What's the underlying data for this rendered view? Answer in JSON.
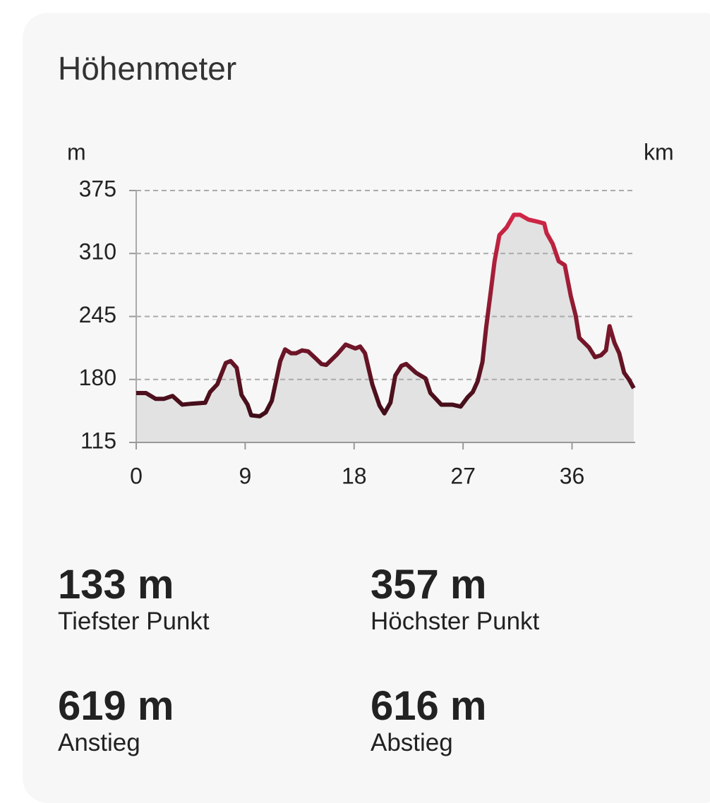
{
  "card": {
    "title": "Höhenmeter",
    "stats": [
      {
        "value": "133 m",
        "label": "Tiefster Punkt"
      },
      {
        "value": "357 m",
        "label": "Höchster Punkt"
      },
      {
        "value": "619 m",
        "label": "Anstieg"
      },
      {
        "value": "616 m",
        "label": "Abstieg"
      }
    ]
  },
  "chart_data": {
    "type": "area",
    "y_label": "m",
    "x_label": "km",
    "x": [
      0,
      0.8,
      1.6,
      2.3,
      3.0,
      3.8,
      4.6,
      5.7,
      6.1,
      6.7,
      7.4,
      7.8,
      8.3,
      8.7,
      9.2,
      9.5,
      10.2,
      10.7,
      11.2,
      11.9,
      12.3,
      12.8,
      13.2,
      13.7,
      14.2,
      14.8,
      15.3,
      15.7,
      16.6,
      17.3,
      18.1,
      18.5,
      18.9,
      19.5,
      20.1,
      20.5,
      21.0,
      21.4,
      21.9,
      22.3,
      23.1,
      23.9,
      24.3,
      25.2,
      26.1,
      26.8,
      27.4,
      27.8,
      28.2,
      28.6,
      28.9,
      29.3,
      29.6,
      30.0,
      30.6,
      31.2,
      31.7,
      32.4,
      33.1,
      33.7,
      33.9,
      34.4,
      34.9,
      35.4,
      35.9,
      36.3,
      36.6,
      37.4,
      37.9,
      38.4,
      38.8,
      39.1,
      39.5,
      39.9,
      40.3,
      40.7,
      41.1
    ],
    "series": [
      {
        "values": [
          166,
          166,
          160,
          160,
          163,
          154,
          155,
          156,
          167,
          175,
          197,
          199,
          192,
          164,
          154,
          143,
          142,
          146,
          158,
          199,
          211,
          207,
          207,
          210,
          209,
          202,
          196,
          195,
          206,
          216,
          212,
          214,
          207,
          175,
          153,
          145,
          156,
          184,
          194,
          196,
          187,
          181,
          166,
          154,
          154,
          152,
          162,
          167,
          178,
          198,
          233,
          272,
          302,
          329,
          337,
          350,
          350,
          345,
          343,
          341,
          331,
          320,
          302,
          298,
          266,
          246,
          223,
          213,
          203,
          205,
          210,
          235,
          218,
          207,
          187,
          180,
          171
        ]
      }
    ],
    "line_gradient": [
      "#2b0a12",
      "#e3294c"
    ],
    "fill": "#e2e2e2",
    "xlim": [
      0,
      41.1
    ],
    "ylim": [
      115,
      375
    ],
    "xticks": [
      0,
      9,
      18,
      27,
      36
    ],
    "yticks": [
      115,
      180,
      245,
      310,
      375
    ],
    "grid": true
  }
}
